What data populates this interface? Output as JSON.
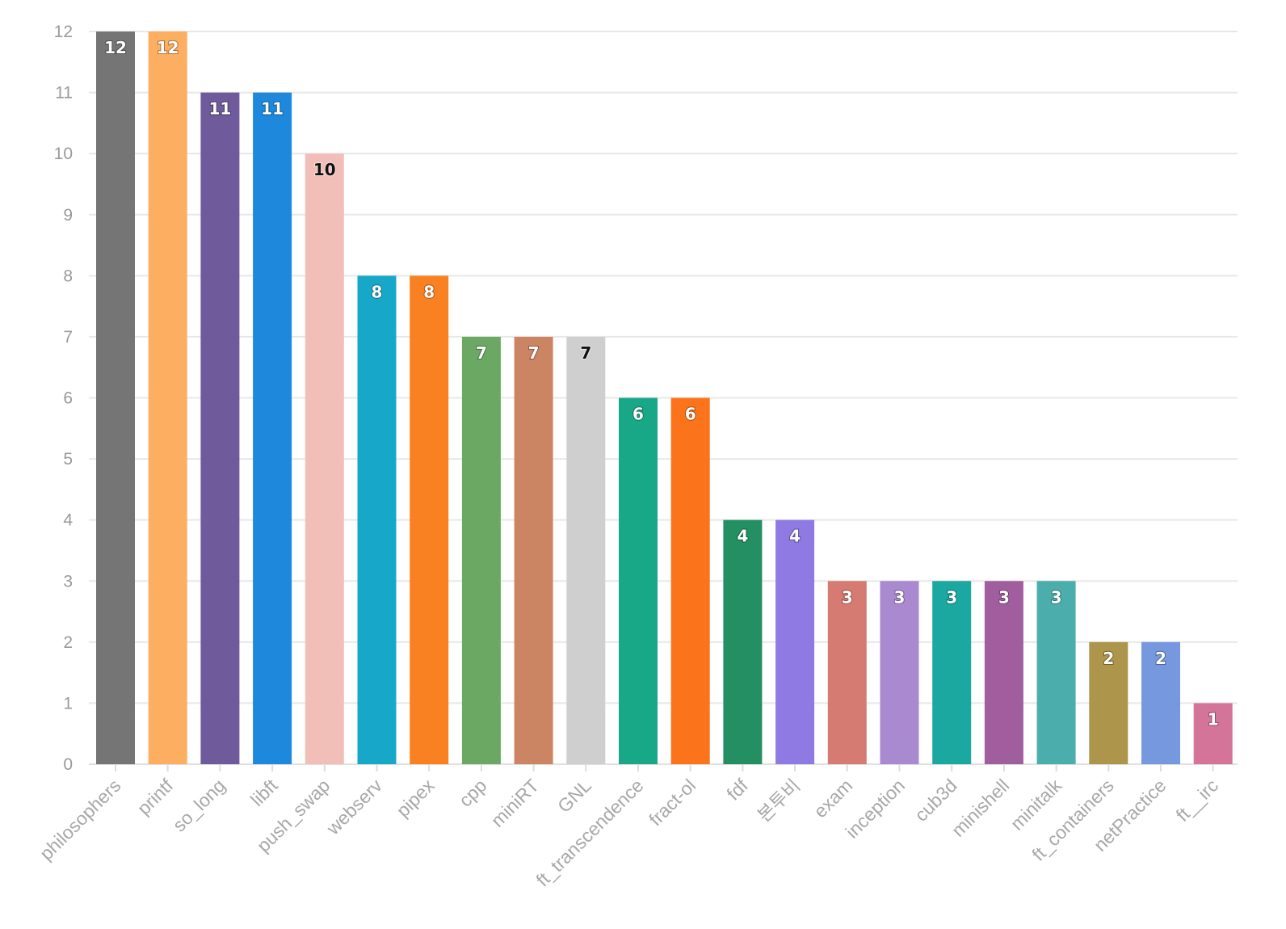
{
  "chart_data": {
    "type": "bar",
    "title": "",
    "xlabel": "",
    "ylabel": "",
    "ylim": [
      0,
      12
    ],
    "yticks": [
      0,
      1,
      2,
      3,
      4,
      5,
      6,
      7,
      8,
      9,
      10,
      11,
      12
    ],
    "grid": true,
    "categories": [
      "philosophers",
      "printf",
      "so_long",
      "libft",
      "push_swap",
      "webserv",
      "pipex",
      "cpp",
      "miniRT",
      "GNL",
      "ft_transcendence",
      "fract-ol",
      "fdf",
      "본투비",
      "exam",
      "inception",
      "cub3d",
      "minishell",
      "minitalk",
      "ft_containers",
      "netPractice",
      "ft__irc"
    ],
    "values": [
      12,
      12,
      11,
      11,
      10,
      8,
      8,
      7,
      7,
      7,
      6,
      6,
      4,
      4,
      3,
      3,
      3,
      3,
      3,
      2,
      2,
      1
    ],
    "colors": [
      "#757575",
      "#FDAE61",
      "#6F5A9B",
      "#1E88DC",
      "#F2BFB8",
      "#17A8C9",
      "#FA8121",
      "#6AA864",
      "#CB8562",
      "#CFCFCF",
      "#19A887",
      "#FB741B",
      "#238F62",
      "#8F7AE3",
      "#D57B72",
      "#A98AD1",
      "#1AA8A0",
      "#A15E9E",
      "#4BAEAC",
      "#AD954B",
      "#7598DF",
      "#D47498"
    ],
    "label_styles": [
      "light",
      "light",
      "light",
      "light",
      "dark",
      "light",
      "light",
      "light",
      "light",
      "dark",
      "light",
      "light",
      "light",
      "light",
      "light",
      "light",
      "light",
      "light",
      "light",
      "light",
      "light",
      "light"
    ]
  }
}
